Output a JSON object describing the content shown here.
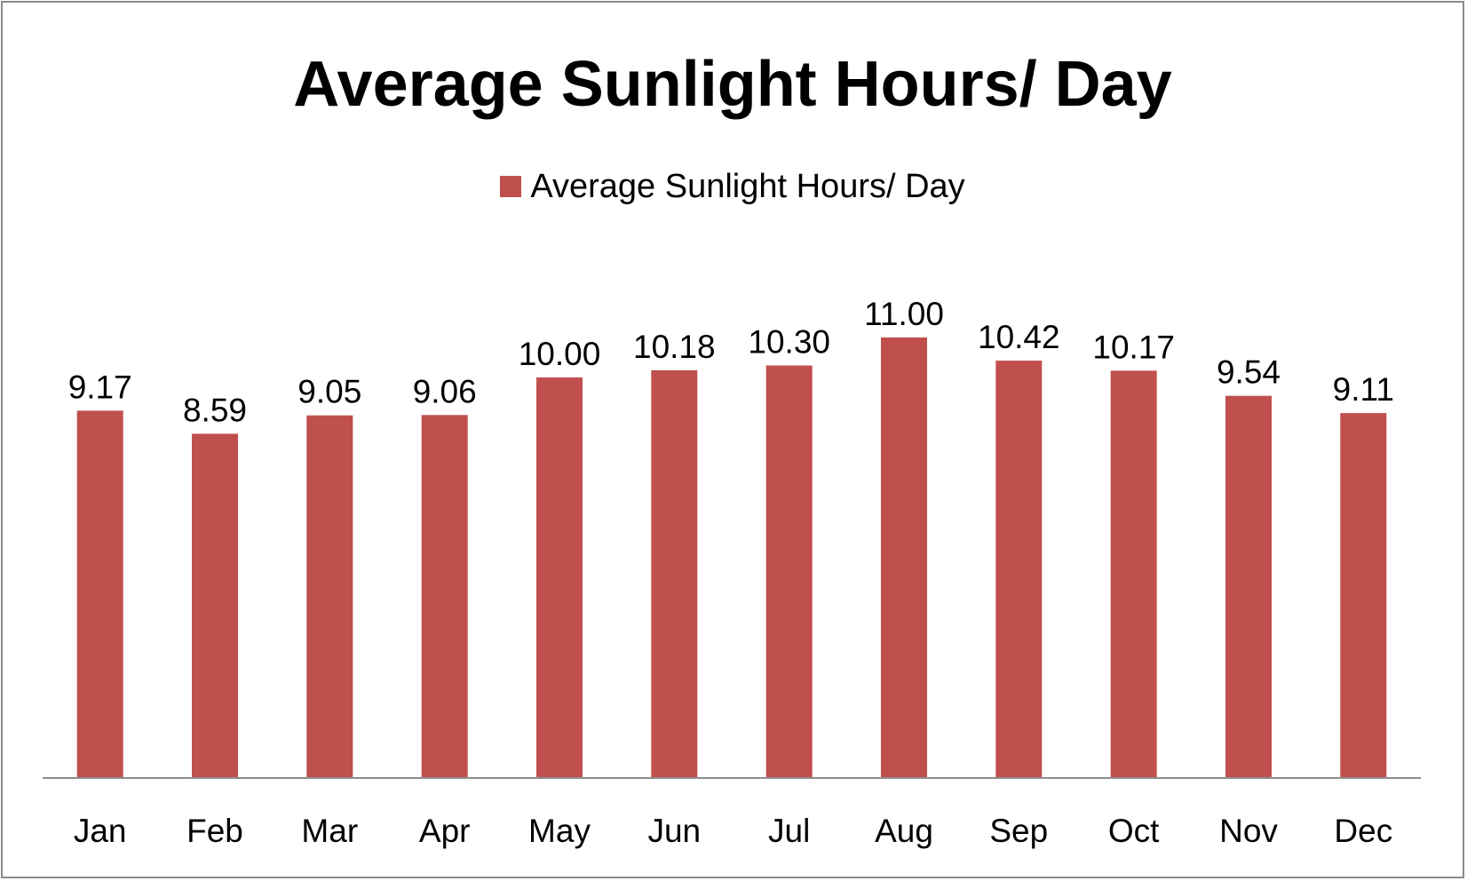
{
  "chart_data": {
    "type": "bar",
    "title": "Average Sunlight Hours/ Day",
    "categories": [
      "Jan",
      "Feb",
      "Mar",
      "Apr",
      "May",
      "Jun",
      "Jul",
      "Aug",
      "Sep",
      "Oct",
      "Nov",
      "Dec"
    ],
    "series": [
      {
        "name": "Average Sunlight Hours/ Day",
        "values": [
          9.17,
          8.59,
          9.05,
          9.06,
          10.0,
          10.18,
          10.3,
          11.0,
          10.42,
          10.17,
          9.54,
          9.11
        ],
        "labels": [
          "9.17",
          "8.59",
          "9.05",
          "9.06",
          "10.00",
          "10.18",
          "10.30",
          "11.00",
          "10.42",
          "10.17",
          "9.54",
          "9.11"
        ],
        "color": "#C0504D"
      }
    ],
    "ylim": [
      0,
      12
    ],
    "grid": false,
    "legend_position": "top",
    "axis_color": "#8c8c8c"
  }
}
